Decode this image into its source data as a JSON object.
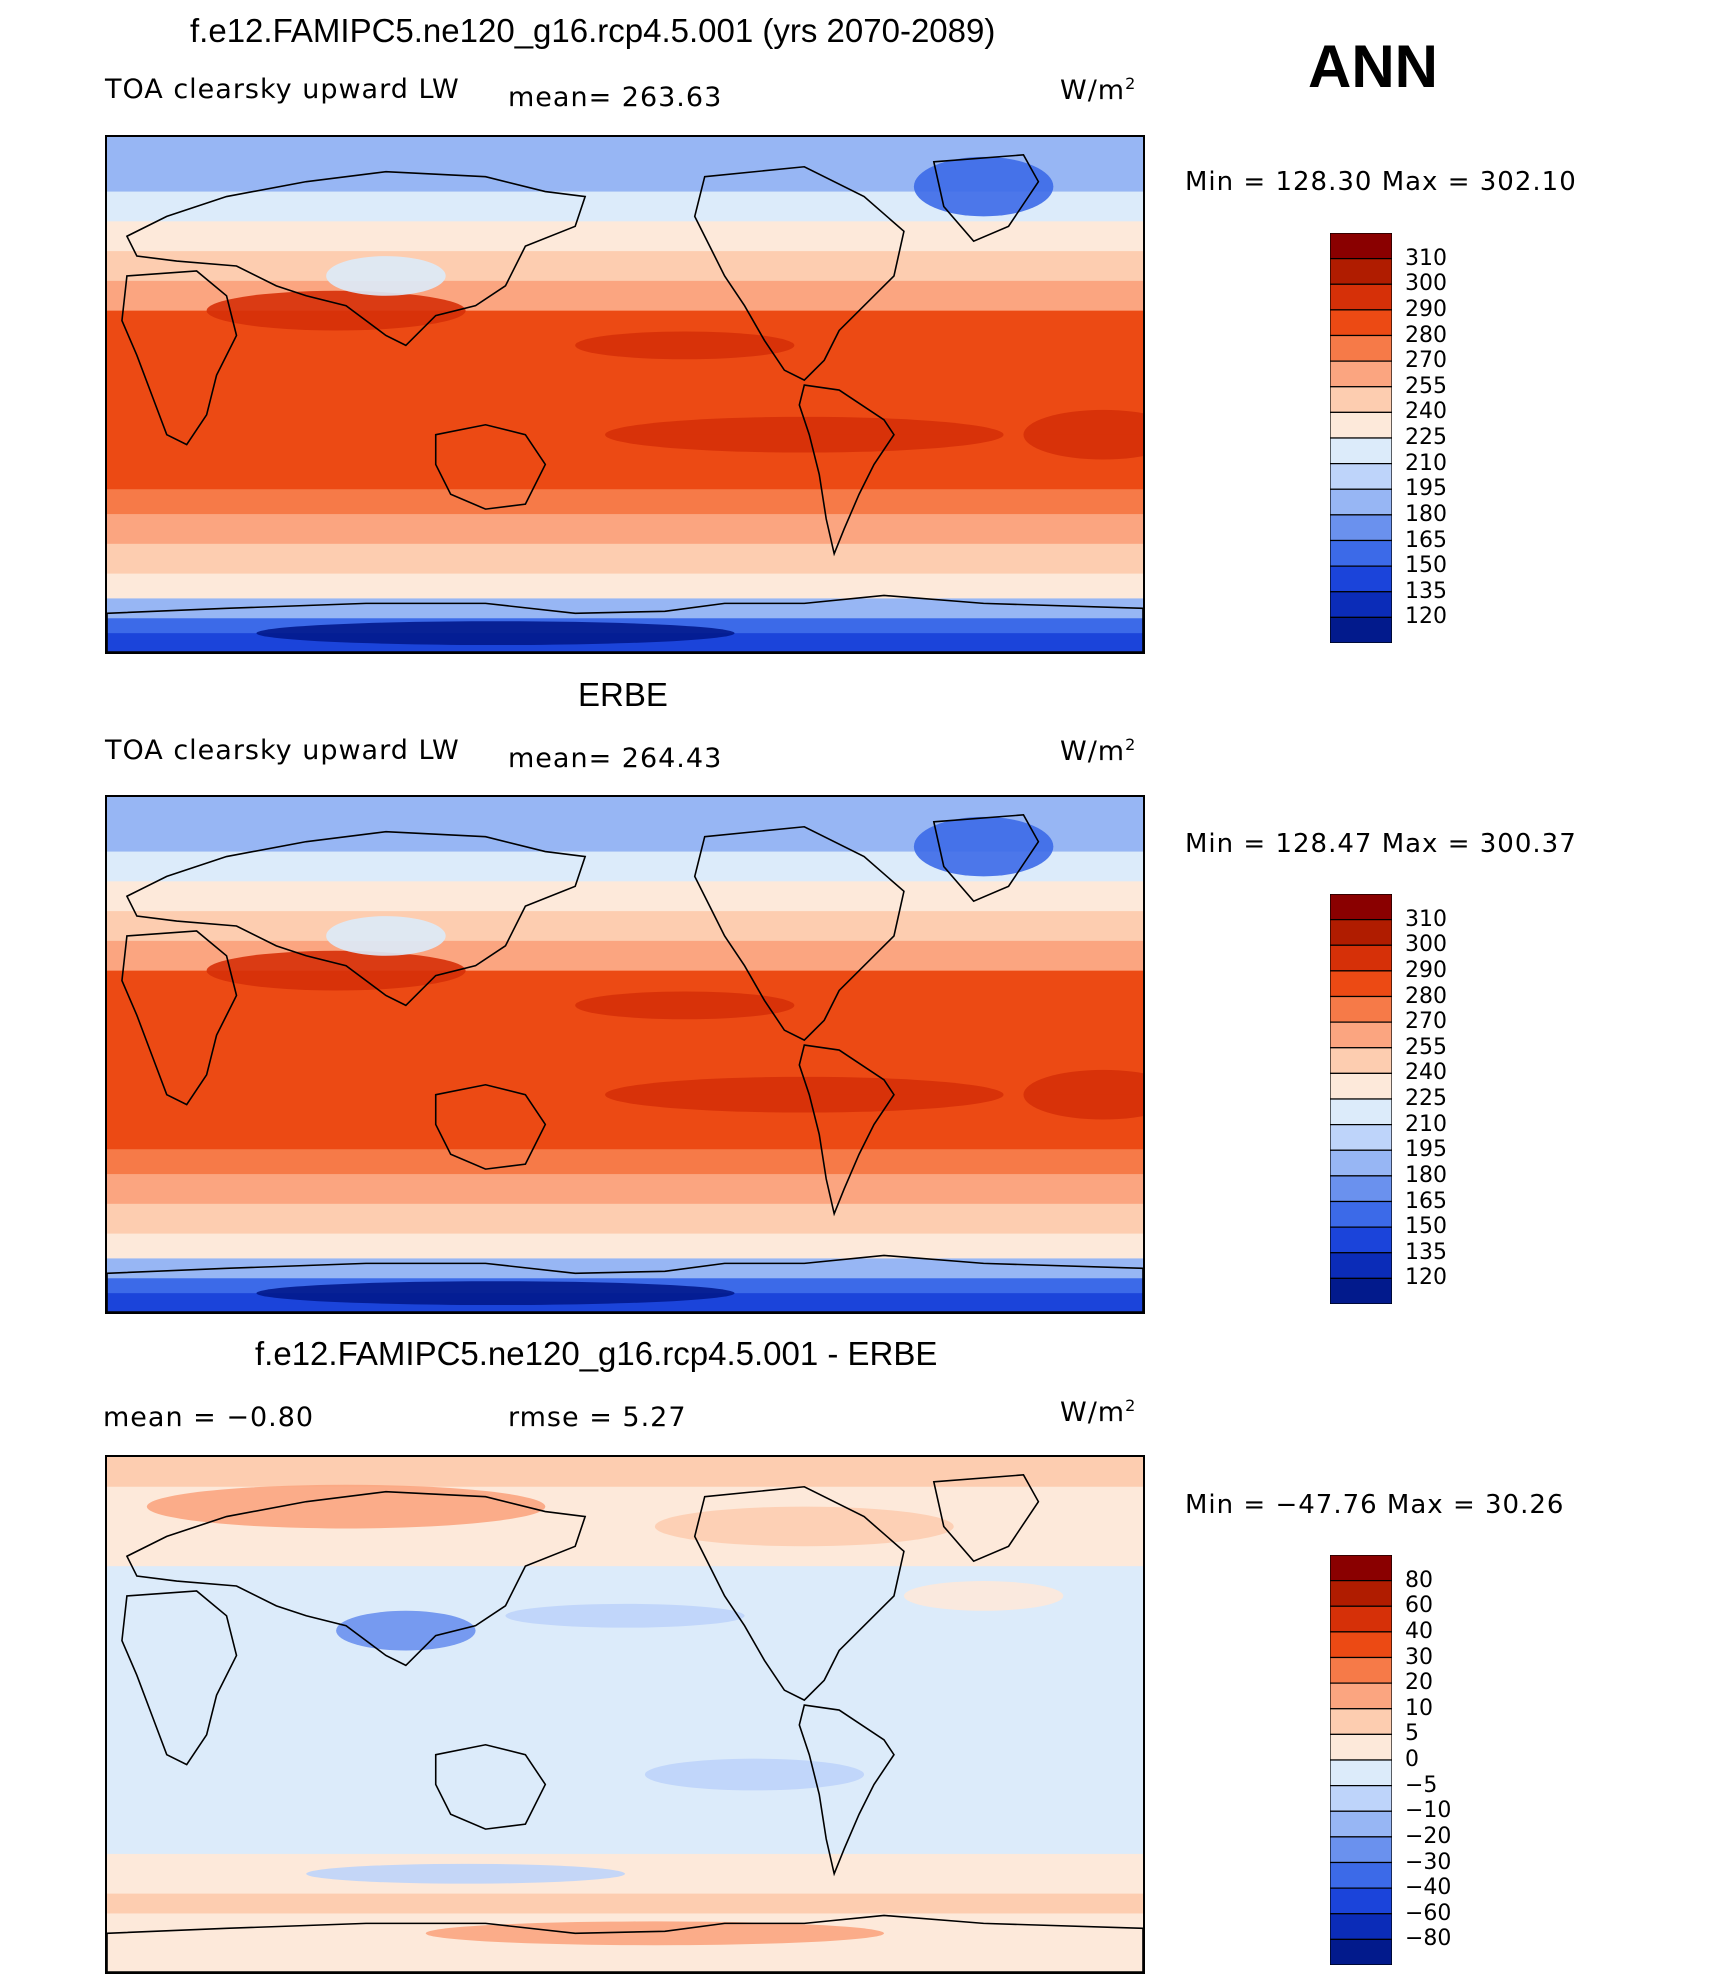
{
  "season": "ANN",
  "panels": [
    {
      "title": "f.e12.FAMIPC5.ne120_g16.rcp4.5.001 (yrs 2070-2089)",
      "field": "TOA clearsky upward LW",
      "stat1": "mean= 263.63",
      "stat2": "",
      "units": "W/m",
      "units_sup": "2",
      "minmax": "Min  =  128.30  Max  =  302.10",
      "kind": "abs",
      "colorbar_labels": [
        "310",
        "300",
        "290",
        "280",
        "270",
        "255",
        "240",
        "225",
        "210",
        "195",
        "180",
        "165",
        "150",
        "135",
        "120"
      ],
      "colorbar_colors": [
        "#8a0000",
        "#b01c00",
        "#d63008",
        "#ec4a14",
        "#f67a48",
        "#fba580",
        "#fdcdb0",
        "#fde9da",
        "#dcebfa",
        "#bed4fa",
        "#97b6f4",
        "#6a91ee",
        "#3c6ae8",
        "#1b44da",
        "#0b2cb8",
        "#021a8c"
      ]
    },
    {
      "title": "ERBE",
      "field": "TOA clearsky upward LW",
      "stat1": "mean= 264.43",
      "stat2": "",
      "units": "W/m",
      "units_sup": "2",
      "minmax": "Min  =  128.47  Max  =  300.37",
      "kind": "abs",
      "colorbar_labels": [
        "310",
        "300",
        "290",
        "280",
        "270",
        "255",
        "240",
        "225",
        "210",
        "195",
        "180",
        "165",
        "150",
        "135",
        "120"
      ],
      "colorbar_colors": [
        "#8a0000",
        "#b01c00",
        "#d63008",
        "#ec4a14",
        "#f67a48",
        "#fba580",
        "#fdcdb0",
        "#fde9da",
        "#dcebfa",
        "#bed4fa",
        "#97b6f4",
        "#6a91ee",
        "#3c6ae8",
        "#1b44da",
        "#0b2cb8",
        "#021a8c"
      ]
    },
    {
      "title": "f.e12.FAMIPC5.ne120_g16.rcp4.5.001 - ERBE",
      "field": "",
      "stat1": "mean =    −0.80",
      "stat2": "rmse =     5.27",
      "units": "W/m",
      "units_sup": "2",
      "minmax": "Min  =  −47.76  Max  =    30.26",
      "kind": "diff",
      "colorbar_labels": [
        "80",
        "60",
        "40",
        "30",
        "20",
        "10",
        "5",
        "0",
        "−5",
        "−10",
        "−20",
        "−30",
        "−40",
        "−60",
        "−80"
      ],
      "colorbar_colors": [
        "#8a0000",
        "#b01c00",
        "#d63008",
        "#ec4a14",
        "#f67a48",
        "#fba580",
        "#fdcdb0",
        "#fde9da",
        "#dcebfa",
        "#bed4fa",
        "#97b6f4",
        "#6a91ee",
        "#3c6ae8",
        "#1b44da",
        "#0b2cb8",
        "#021a8c"
      ]
    }
  ]
}
